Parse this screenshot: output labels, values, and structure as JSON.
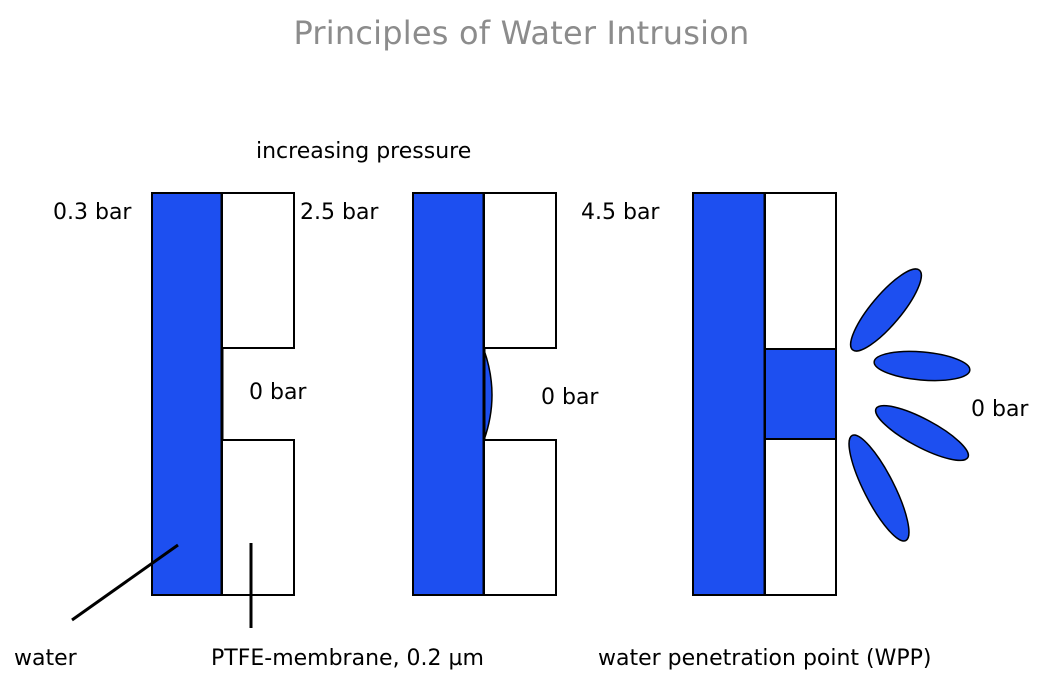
{
  "title": "Principles of Water Intrusion",
  "header_label": "increasing pressure",
  "colors": {
    "water": "#1d4ff0",
    "outline": "#000000",
    "membrane": "#ffffff",
    "title": "#8c8c8c"
  },
  "stages": [
    {
      "pressure_label": "0.3 bar",
      "outlet_label": "0  bar"
    },
    {
      "pressure_label": "2.5  bar",
      "outlet_label": "0  bar"
    },
    {
      "pressure_label": "4.5  bar",
      "outlet_label": "0  bar"
    }
  ],
  "callouts": {
    "water": "water",
    "membrane": "PTFE-membrane, 0.2 µm",
    "wpp": "water penetration point (WPP)"
  }
}
